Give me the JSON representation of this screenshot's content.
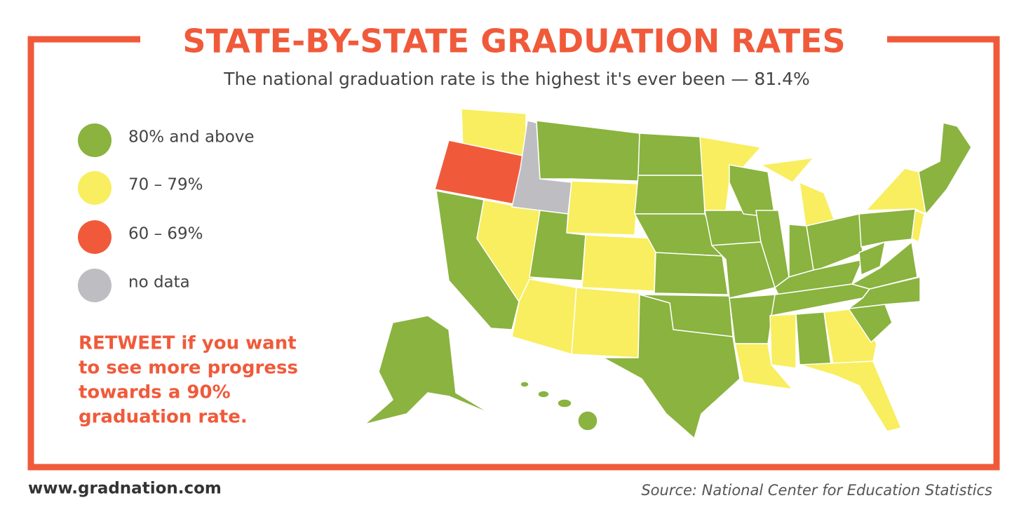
{
  "header": {
    "title": "STATE-BY-STATE GRADUATION RATES",
    "subtitle": "The national graduation rate is the highest it's ever been — 81.4%"
  },
  "legend": [
    {
      "label": "80% and above",
      "color": "#8ab33f"
    },
    {
      "label": "70 – 79%",
      "color": "#f8ee5f"
    },
    {
      "label": "60 – 69%",
      "color": "#f05a3a"
    },
    {
      "label": "no data",
      "color": "#bdbdc2"
    }
  ],
  "call_to_action": [
    "RETWEET if you want",
    "to see more progress",
    "towards a 90%",
    "graduation rate."
  ],
  "footer": {
    "website": "www.gradnation.com",
    "source": "Source: National Center for Education Statistics"
  }
}
